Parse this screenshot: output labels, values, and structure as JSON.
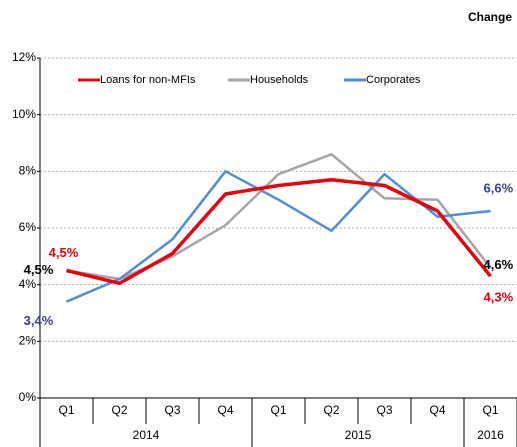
{
  "chart_data": {
    "type": "line",
    "title": "Change",
    "categories": [
      "Q1",
      "Q2",
      "Q3",
      "Q4",
      "Q1",
      "Q2",
      "Q3",
      "Q4",
      "Q1"
    ],
    "groups": [
      {
        "label": "2014",
        "size": 4
      },
      {
        "label": "2015",
        "size": 4
      },
      {
        "label": "2016",
        "size": 1
      }
    ],
    "series": [
      {
        "name": "Loans for non-MFIs",
        "color": "#e8000b",
        "values": [
          4.5,
          4.05,
          5.1,
          7.2,
          7.5,
          7.7,
          7.5,
          6.6,
          4.3
        ],
        "value_labels": [
          "4,5%",
          null,
          null,
          null,
          null,
          null,
          null,
          null,
          "4,3%"
        ]
      },
      {
        "name": "Households",
        "color": "#a6a6a6",
        "values": [
          4.5,
          4.2,
          5.0,
          6.1,
          7.9,
          8.6,
          7.05,
          7.0,
          4.6
        ],
        "value_labels": [
          "4,5%",
          null,
          null,
          null,
          null,
          null,
          null,
          null,
          "4,6%"
        ]
      },
      {
        "name": "Corporates",
        "color": "#4f8fd6",
        "values": [
          3.4,
          4.2,
          5.6,
          8.0,
          7.0,
          5.9,
          7.9,
          6.4,
          6.6
        ],
        "value_labels": [
          "3,4%",
          null,
          null,
          null,
          null,
          null,
          null,
          null,
          "6,6%"
        ]
      }
    ],
    "label_colors": [
      "#e8000b",
      "#000000",
      "#3d3d99"
    ],
    "ylim": [
      0,
      12
    ],
    "yticks": [
      {
        "value": 0,
        "label": "0%"
      },
      {
        "value": 2,
        "label": "2%"
      },
      {
        "value": 4,
        "label": "4%"
      },
      {
        "value": 6,
        "label": "6%"
      },
      {
        "value": 8,
        "label": "8%"
      },
      {
        "value": 10,
        "label": "10%"
      },
      {
        "value": 12,
        "label": "12%"
      }
    ],
    "grid": true,
    "legend": "top"
  }
}
